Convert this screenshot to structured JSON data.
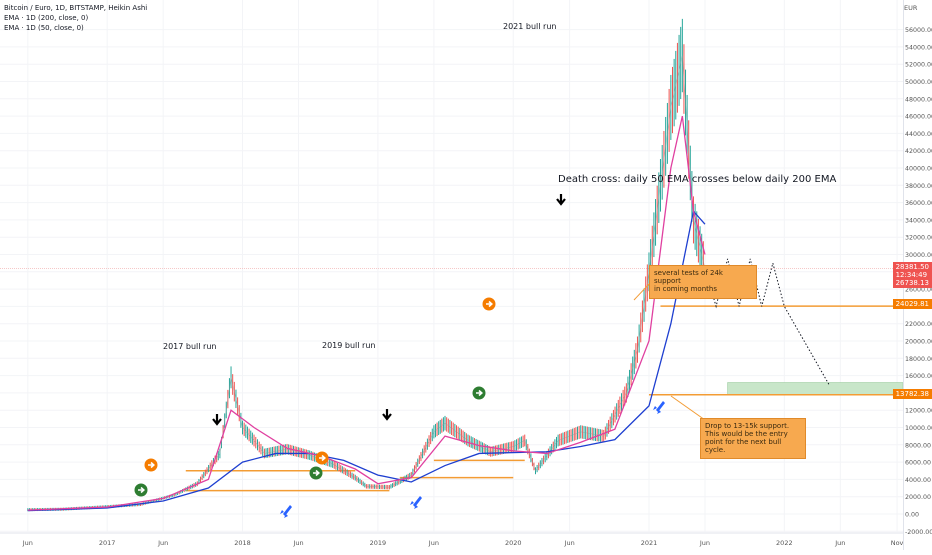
{
  "header": {
    "line1": "Bitcoin / Euro, 1D, BITSTAMP, Heikin Ashi",
    "line2": "EMA · 1D (200, close, 0)",
    "line3": "EMA · 1D (50, close, 0)"
  },
  "axis_unit": "EUR",
  "annotations": {
    "bull_2017": "2017 bull run",
    "bull_2019": "2019 bull run",
    "bull_2021": "2021 bull run",
    "death_cross": "Death cross: daily 50 EMA crosses below daily 200 EMA",
    "support_note": "several tests of 24k support\nin coming months",
    "drop_note": "Drop to 13-15k support.\nThis would be the entry\npoint for the next bull cycle."
  },
  "price_tags": {
    "current": "28381.50\n12:34:49\n26738.13",
    "support_24k": "24029.81",
    "support_13k": "13782.38"
  },
  "colors": {
    "ema200": "#1e3fd0",
    "ema50": "#e040a0",
    "up_candle": "#26a69a",
    "down_candle": "#ef5350",
    "support_line": "#f39c34",
    "zone_fill": "#c8e6c9",
    "green_circle": "#2e7d32",
    "orange_circle": "#f57c00",
    "rocket": "#2962ff"
  },
  "chart_data": {
    "type": "line",
    "title": "Bitcoin / Euro, 1D, BITSTAMP, Heikin Ashi",
    "xlabel": "",
    "ylabel": "EUR",
    "x_ticks": [
      "Jun",
      "2017",
      "Jun",
      "2018",
      "Jun",
      "2019",
      "Jun",
      "2020",
      "Jun",
      "2021",
      "Jun",
      "2022",
      "Jun",
      "Nov"
    ],
    "y_ticks": [
      56000,
      54000,
      52000,
      50000,
      48000,
      46000,
      44000,
      42000,
      40000,
      38000,
      36000,
      34000,
      32000,
      30000,
      28000,
      26000,
      24000,
      22000,
      20000,
      18000,
      16000,
      14000,
      12000,
      10000,
      8000,
      6000,
      4000,
      2000,
      0,
      -2000
    ],
    "ylim": [
      -2000,
      58000
    ],
    "series": [
      {
        "name": "BTCEUR Heikin Ashi close",
        "x": [
          "2016-06",
          "2016-09",
          "2017-01",
          "2017-04",
          "2017-07",
          "2017-09",
          "2017-11",
          "2017-12",
          "2018-01",
          "2018-02",
          "2018-03",
          "2018-05",
          "2018-07",
          "2018-09",
          "2018-11",
          "2018-12",
          "2019-02",
          "2019-04",
          "2019-06",
          "2019-07",
          "2019-09",
          "2019-11",
          "2020-01",
          "2020-02",
          "2020-03",
          "2020-05",
          "2020-07",
          "2020-09",
          "2020-11",
          "2020-12",
          "2021-01",
          "2021-02",
          "2021-03",
          "2021-04",
          "2021-05",
          "2021-06"
        ],
        "values": [
          500,
          550,
          850,
          1100,
          2200,
          3500,
          7000,
          15800,
          10000,
          8500,
          7000,
          7500,
          6800,
          5800,
          4200,
          3200,
          3100,
          4500,
          9500,
          10500,
          8500,
          7200,
          7800,
          8500,
          5000,
          8500,
          9500,
          9000,
          14000,
          19000,
          28000,
          38000,
          47000,
          53000,
          34000,
          28400
        ]
      },
      {
        "name": "EMA 1D (200, close, 0)",
        "x": [
          "2016-06",
          "2017-01",
          "2017-06",
          "2017-10",
          "2018-01",
          "2018-04",
          "2018-07",
          "2018-10",
          "2019-01",
          "2019-04",
          "2019-07",
          "2019-10",
          "2020-01",
          "2020-04",
          "2020-07",
          "2020-10",
          "2021-01",
          "2021-03",
          "2021-05",
          "2021-06"
        ],
        "values": [
          400,
          700,
          1500,
          3000,
          6000,
          7000,
          7000,
          6200,
          4500,
          3700,
          5600,
          7000,
          7100,
          7200,
          7800,
          8600,
          12500,
          22000,
          35000,
          33500
        ]
      },
      {
        "name": "EMA 1D (50, close, 0)",
        "x": [
          "2016-06",
          "2017-01",
          "2017-06",
          "2017-10",
          "2017-12",
          "2018-02",
          "2018-05",
          "2018-08",
          "2018-11",
          "2019-01",
          "2019-04",
          "2019-07",
          "2019-10",
          "2020-01",
          "2020-04",
          "2020-07",
          "2020-10",
          "2021-01",
          "2021-03",
          "2021-04",
          "2021-05",
          "2021-06"
        ],
        "values": [
          450,
          800,
          1800,
          4000,
          12000,
          10000,
          7600,
          6700,
          5200,
          3500,
          4200,
          9000,
          7900,
          7300,
          7000,
          8300,
          9800,
          20000,
          40000,
          46000,
          35000,
          30000
        ]
      }
    ],
    "horizontal_levels": [
      {
        "price": 24029.81,
        "label": "24029.81"
      },
      {
        "price": 13782.38,
        "label": "13782.38"
      },
      {
        "price": 5000,
        "label": ""
      },
      {
        "price": 4200,
        "label": ""
      },
      {
        "price": 2700,
        "label": ""
      },
      {
        "price": 6200,
        "label": ""
      }
    ],
    "projection": {
      "x": [
        "2021-06",
        "2021-07",
        "2021-08",
        "2021-09",
        "2021-10",
        "2021-11",
        "2021-12",
        "2022-01",
        "2022-05"
      ],
      "values": [
        28400,
        24000,
        29500,
        24000,
        29500,
        24000,
        29000,
        24000,
        15000
      ]
    },
    "support_zone": {
      "from": 13782.38,
      "to": 15200
    }
  }
}
